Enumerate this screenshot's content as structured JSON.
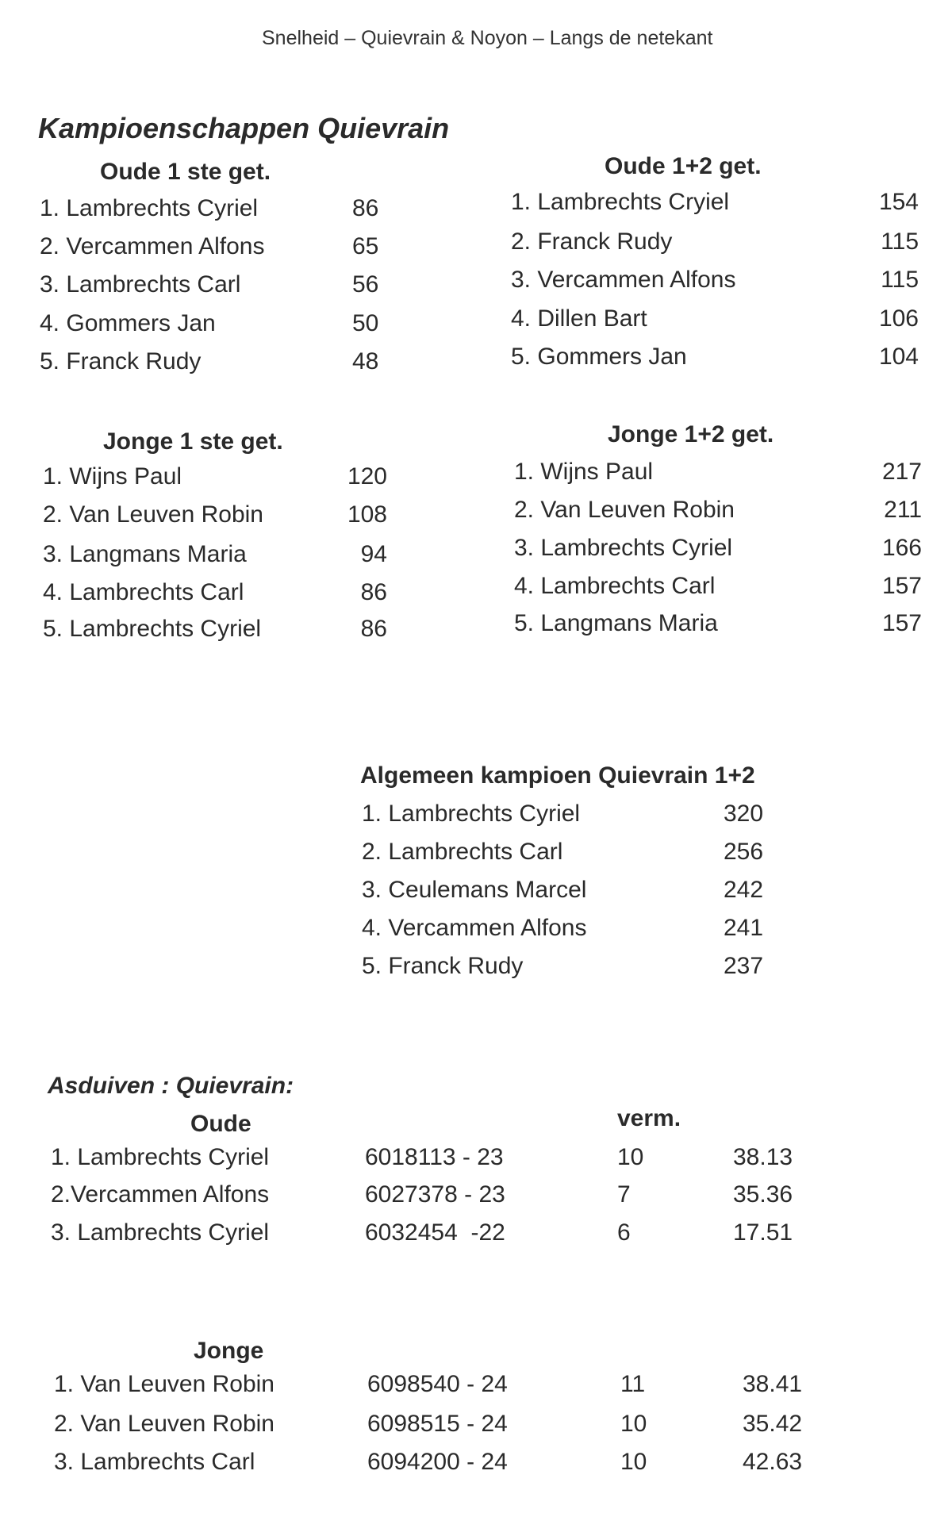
{
  "header": "Snelheid – Quievrain & Noyon – Langs de netekant",
  "title": "Kampioenschappen Quievrain",
  "oude_1ste": {
    "heading": "Oude 1 ste get.",
    "rows": [
      {
        "name": "1. Lambrechts Cyriel",
        "points": "86"
      },
      {
        "name": "2. Vercammen Alfons",
        "points": "65"
      },
      {
        "name": "3. Lambrechts Carl",
        "points": "56"
      },
      {
        "name": "4. Gommers Jan",
        "points": "50"
      },
      {
        "name": "5. Franck Rudy",
        "points": "48"
      }
    ]
  },
  "oude_12": {
    "heading": "Oude 1+2 get.",
    "rows": [
      {
        "name": "1. Lambrechts Cryiel",
        "points": "154"
      },
      {
        "name": "2. Franck Rudy",
        "points": "115"
      },
      {
        "name": "3. Vercammen Alfons",
        "points": "115"
      },
      {
        "name": "4. Dillen Bart",
        "points": "106"
      },
      {
        "name": "5. Gommers Jan",
        "points": "104"
      }
    ]
  },
  "jonge_1ste": {
    "heading": "Jonge 1 ste get.",
    "rows": [
      {
        "name": "1. Wijns Paul",
        "points": "120"
      },
      {
        "name": "2. Van Leuven Robin",
        "points": "108"
      },
      {
        "name": "3. Langmans Maria",
        "points": "94"
      },
      {
        "name": "4. Lambrechts Carl",
        "points": "86"
      },
      {
        "name": "5. Lambrechts Cyriel",
        "points": "86"
      }
    ]
  },
  "jonge_12": {
    "heading": "Jonge 1+2 get.",
    "rows": [
      {
        "name": "1. Wijns Paul",
        "points": "217"
      },
      {
        "name": "2. Van Leuven Robin",
        "points": "211"
      },
      {
        "name": "3. Lambrechts Cyriel",
        "points": "166"
      },
      {
        "name": "4. Lambrechts Carl",
        "points": "157"
      },
      {
        "name": "5. Langmans Maria",
        "points": "157"
      }
    ]
  },
  "algemeen": {
    "heading": "Algemeen kampioen Quievrain 1+2",
    "rows": [
      {
        "name": "1. Lambrechts Cyriel",
        "points": "320"
      },
      {
        "name": "2. Lambrechts Carl",
        "points": "256"
      },
      {
        "name": "3. Ceulemans Marcel",
        "points": "242"
      },
      {
        "name": "4. Vercammen Alfons",
        "points": "241"
      },
      {
        "name": "5. Franck Rudy",
        "points": "237"
      }
    ]
  },
  "asduiven": {
    "title": "Asduiven : Quievrain:",
    "verm_label": "verm.",
    "oude": {
      "heading": "Oude",
      "rows": [
        {
          "name": "1. Lambrechts Cyriel",
          "ring": "6018113 - 23",
          "verm": "10",
          "score": "38.13"
        },
        {
          "name": "2.Vercammen Alfons",
          "ring": "6027378 - 23",
          "verm": "7",
          "score": "35.36"
        },
        {
          "name": "3. Lambrechts Cyriel",
          "ring": "6032454  -22",
          "verm": "6",
          "score": "17.51"
        }
      ]
    },
    "jonge": {
      "heading": "Jonge",
      "rows": [
        {
          "name": "1. Van Leuven Robin",
          "ring": "6098540 - 24",
          "verm": "11",
          "score": "38.41"
        },
        {
          "name": "2. Van Leuven Robin",
          "ring": "6098515 - 24",
          "verm": "10",
          "score": "35.42"
        },
        {
          "name": "3. Lambrechts Carl",
          "ring": "6094200 - 24",
          "verm": "10",
          "score": "42.63"
        }
      ]
    }
  }
}
